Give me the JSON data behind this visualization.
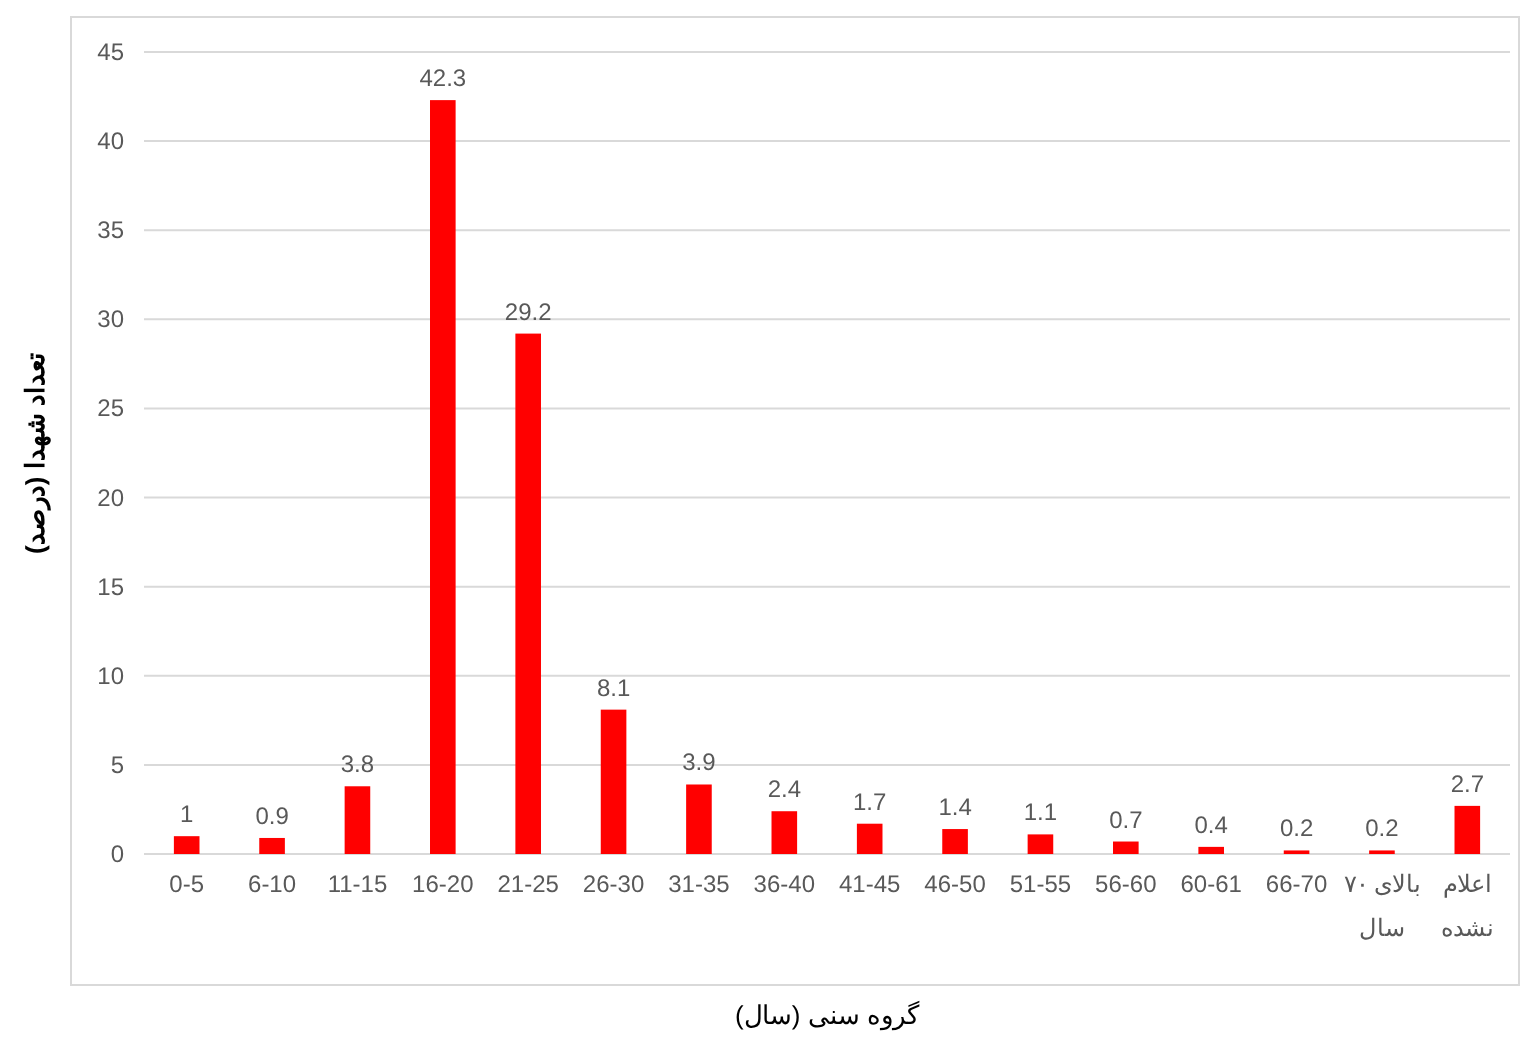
{
  "chart_data": {
    "type": "bar",
    "xlabel": "گروه سنی (سال)",
    "ylabel": "تعداد شهدا (درصد)",
    "categories": [
      "0-5",
      "6-10",
      "11-15",
      "16-20",
      "21-25",
      "26-30",
      "31-35",
      "36-40",
      "41-45",
      "46-50",
      "51-55",
      "56-60",
      "60-61",
      "66-70",
      "بالای ۷۰ سال",
      "اعلام نشده"
    ],
    "values": [
      1,
      0.9,
      3.8,
      42.3,
      29.2,
      8.1,
      3.9,
      2.4,
      1.7,
      1.4,
      1.1,
      0.7,
      0.4,
      0.2,
      0.2,
      2.7
    ],
    "color": "#ff0000",
    "ylim": [
      0,
      45
    ],
    "yticks": [
      0,
      5,
      10,
      15,
      20,
      25,
      30,
      35,
      40,
      45
    ],
    "grid": "y",
    "data_labels": true
  }
}
